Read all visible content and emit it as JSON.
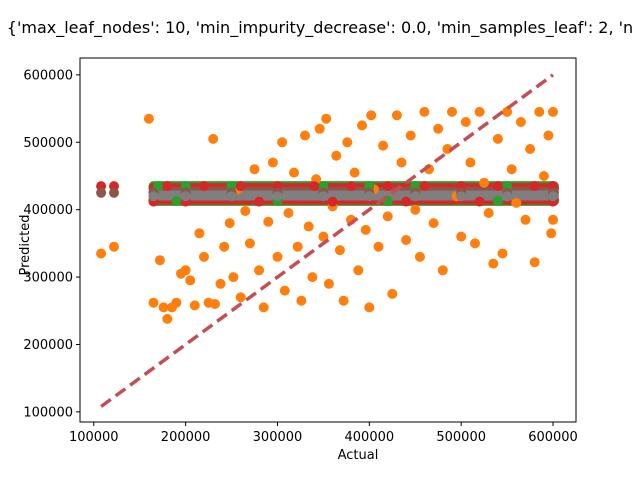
{
  "chart_data": {
    "type": "scatter",
    "title": "{'max_leaf_nodes': 10, 'min_impurity_decrease': 0.0, 'min_samples_leaf': 2, 'n",
    "xlabel": "Actual",
    "ylabel": "Predicted",
    "xlim": [
      85000,
      625000
    ],
    "ylim": [
      85000,
      625000
    ],
    "x_ticks": [
      100000,
      200000,
      300000,
      400000,
      500000,
      600000
    ],
    "y_ticks": [
      100000,
      200000,
      300000,
      400000,
      500000,
      600000
    ],
    "x_tick_labels": [
      "100000",
      "200000",
      "300000",
      "400000",
      "500000",
      "600000"
    ],
    "y_tick_labels": [
      "100000",
      "200000",
      "300000",
      "400000",
      "500000",
      "600000"
    ],
    "grid": false,
    "legend": "none",
    "series": [
      {
        "color": "#ff7f0e",
        "points": [
          [
            108000,
            335000
          ],
          [
            122000,
            345000
          ],
          [
            160000,
            535000
          ],
          [
            165000,
            262000
          ],
          [
            172000,
            325000
          ],
          [
            176000,
            255000
          ],
          [
            180000,
            238000
          ],
          [
            185000,
            255000
          ],
          [
            190000,
            262000
          ],
          [
            195000,
            305000
          ],
          [
            200000,
            310000
          ],
          [
            205000,
            295000
          ],
          [
            210000,
            258000
          ],
          [
            215000,
            365000
          ],
          [
            220000,
            330000
          ],
          [
            225000,
            262000
          ],
          [
            230000,
            505000
          ],
          [
            232000,
            260000
          ],
          [
            238000,
            290000
          ],
          [
            242000,
            345000
          ],
          [
            248000,
            380000
          ],
          [
            252000,
            300000
          ],
          [
            256000,
            430000
          ],
          [
            260000,
            270000
          ],
          [
            265000,
            398000
          ],
          [
            270000,
            350000
          ],
          [
            275000,
            460000
          ],
          [
            280000,
            310000
          ],
          [
            285000,
            255000
          ],
          [
            290000,
            382000
          ],
          [
            295000,
            470000
          ],
          [
            300000,
            330000
          ],
          [
            305000,
            500000
          ],
          [
            308000,
            280000
          ],
          [
            312000,
            395000
          ],
          [
            318000,
            455000
          ],
          [
            322000,
            345000
          ],
          [
            326000,
            265000
          ],
          [
            330000,
            510000
          ],
          [
            334000,
            375000
          ],
          [
            338000,
            300000
          ],
          [
            342000,
            445000
          ],
          [
            346000,
            520000
          ],
          [
            350000,
            360000
          ],
          [
            353000,
            535000
          ],
          [
            356000,
            290000
          ],
          [
            360000,
            405000
          ],
          [
            364000,
            480000
          ],
          [
            368000,
            340000
          ],
          [
            372000,
            265000
          ],
          [
            376000,
            500000
          ],
          [
            380000,
            385000
          ],
          [
            384000,
            455000
          ],
          [
            388000,
            310000
          ],
          [
            392000,
            525000
          ],
          [
            396000,
            370000
          ],
          [
            400000,
            255000
          ],
          [
            402000,
            540000
          ],
          [
            405000,
            430000
          ],
          [
            410000,
            345000
          ],
          [
            415000,
            495000
          ],
          [
            420000,
            390000
          ],
          [
            425000,
            275000
          ],
          [
            430000,
            540000
          ],
          [
            435000,
            470000
          ],
          [
            440000,
            355000
          ],
          [
            445000,
            510000
          ],
          [
            450000,
            400000
          ],
          [
            455000,
            330000
          ],
          [
            460000,
            545000
          ],
          [
            465000,
            460000
          ],
          [
            470000,
            380000
          ],
          [
            475000,
            520000
          ],
          [
            480000,
            310000
          ],
          [
            485000,
            490000
          ],
          [
            490000,
            545000
          ],
          [
            495000,
            420000
          ],
          [
            500000,
            360000
          ],
          [
            505000,
            530000
          ],
          [
            510000,
            470000
          ],
          [
            515000,
            350000
          ],
          [
            520000,
            545000
          ],
          [
            525000,
            440000
          ],
          [
            530000,
            395000
          ],
          [
            535000,
            320000
          ],
          [
            540000,
            505000
          ],
          [
            545000,
            335000
          ],
          [
            550000,
            545000
          ],
          [
            555000,
            460000
          ],
          [
            560000,
            410000
          ],
          [
            565000,
            530000
          ],
          [
            570000,
            385000
          ],
          [
            575000,
            490000
          ],
          [
            580000,
            322000
          ],
          [
            585000,
            545000
          ],
          [
            590000,
            450000
          ],
          [
            595000,
            510000
          ],
          [
            598000,
            365000
          ],
          [
            600000,
            545000
          ],
          [
            600000,
            385000
          ]
        ]
      },
      {
        "color": "#2ca02c",
        "points": [
          [
            170000,
            435000
          ],
          [
            200000,
            435000
          ],
          [
            250000,
            435000
          ],
          [
            300000,
            435000
          ],
          [
            350000,
            435000
          ],
          [
            400000,
            435000
          ],
          [
            450000,
            435000
          ],
          [
            500000,
            435000
          ],
          [
            550000,
            435000
          ],
          [
            600000,
            435000
          ],
          [
            190000,
            413000
          ],
          [
            300000,
            413000
          ],
          [
            420000,
            413000
          ],
          [
            540000,
            413000
          ]
        ]
      },
      {
        "color": "#d62728",
        "points": [
          [
            108000,
            435000
          ],
          [
            122000,
            435000
          ],
          [
            165000,
            412000
          ],
          [
            180000,
            435000
          ],
          [
            220000,
            435000
          ],
          [
            260000,
            435000
          ],
          [
            300000,
            435000
          ],
          [
            340000,
            435000
          ],
          [
            380000,
            435000
          ],
          [
            420000,
            435000
          ],
          [
            460000,
            435000
          ],
          [
            500000,
            435000
          ],
          [
            540000,
            435000
          ],
          [
            580000,
            435000
          ],
          [
            600000,
            435000
          ],
          [
            200000,
            412000
          ],
          [
            280000,
            412000
          ],
          [
            360000,
            412000
          ],
          [
            440000,
            412000
          ],
          [
            520000,
            412000
          ],
          [
            600000,
            412000
          ]
        ]
      },
      {
        "color": "#8c564b",
        "points": [
          [
            108000,
            425000
          ],
          [
            122000,
            425000
          ],
          [
            165000,
            425000
          ],
          [
            200000,
            425000
          ],
          [
            250000,
            425000
          ],
          [
            300000,
            425000
          ],
          [
            350000,
            425000
          ],
          [
            400000,
            425000
          ],
          [
            450000,
            425000
          ],
          [
            500000,
            425000
          ],
          [
            550000,
            425000
          ],
          [
            600000,
            425000
          ]
        ]
      },
      {
        "color": "#7f7f7f",
        "points": [
          [
            165000,
            420000
          ],
          [
            200000,
            420000
          ],
          [
            250000,
            420000
          ],
          [
            300000,
            420000
          ],
          [
            350000,
            420000
          ],
          [
            400000,
            420000
          ],
          [
            450000,
            420000
          ],
          [
            500000,
            420000
          ],
          [
            550000,
            420000
          ],
          [
            600000,
            420000
          ]
        ]
      }
    ],
    "reference_line": {
      "x": [
        108000,
        600000
      ],
      "y": [
        108000,
        600000
      ],
      "color": "#c44e52",
      "style": "dashed"
    }
  }
}
